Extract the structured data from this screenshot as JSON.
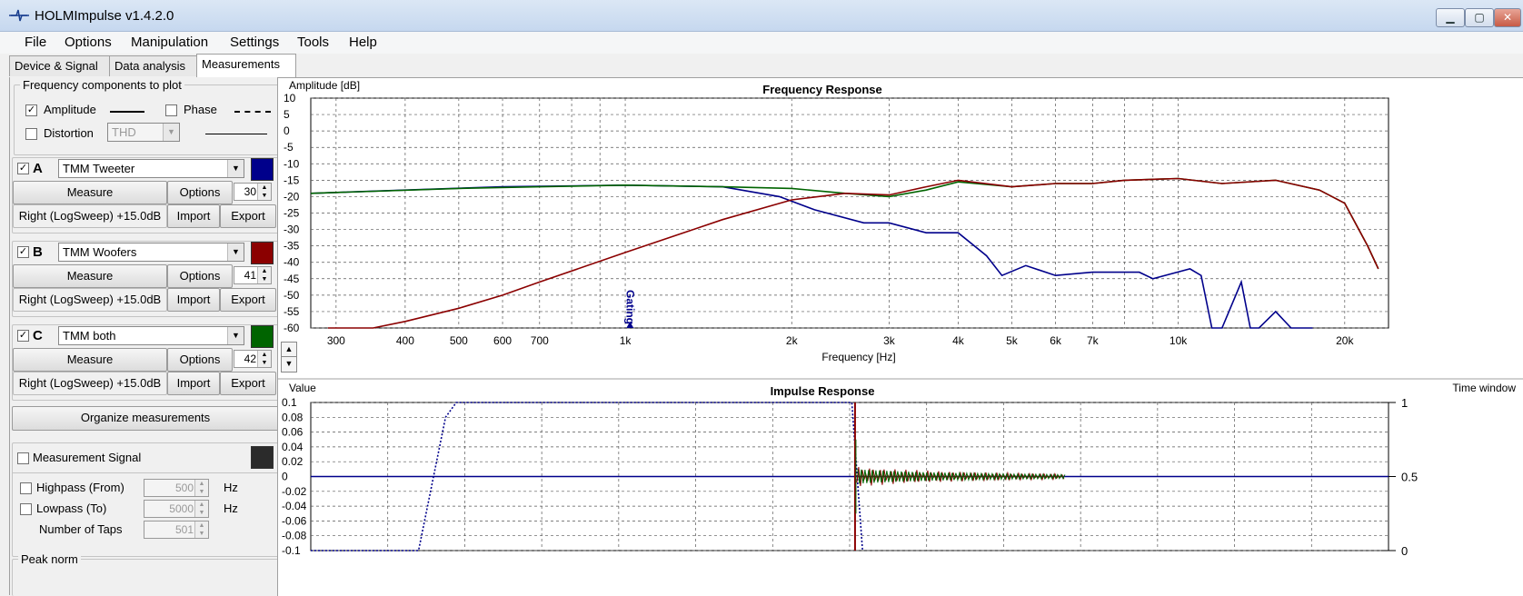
{
  "window": {
    "title": "HOLMImpulse  v1.4.2.0",
    "minimize": "▁",
    "maximize": "▢",
    "close": "✕"
  },
  "menu": [
    "File",
    "Options",
    "Manipulation",
    "Settings",
    "Tools",
    "Help"
  ],
  "tabs": [
    "Device & Signal",
    "Data analysis",
    "Measurements"
  ],
  "freq_components": {
    "title": "Frequency components to plot",
    "amplitude": {
      "label": "Amplitude",
      "checked": true
    },
    "phase": {
      "label": "Phase",
      "checked": false
    },
    "distortion": {
      "label": "Distortion",
      "checked": false,
      "select": "THD"
    }
  },
  "measurements": [
    {
      "letter": "A",
      "checked": true,
      "name": "TMM Tweeter",
      "color": "#00008b",
      "measure": "Measure",
      "options": "Options",
      "count": "30",
      "info": "Right (LogSweep) +15.0dB",
      "import": "Import",
      "export": "Export"
    },
    {
      "letter": "B",
      "checked": true,
      "name": "TMM Woofers",
      "color": "#8b0000",
      "measure": "Measure",
      "options": "Options",
      "count": "41",
      "info": "Right (LogSweep) +15.0dB",
      "import": "Import",
      "export": "Export"
    },
    {
      "letter": "C",
      "checked": true,
      "name": "TMM both",
      "color": "#006400",
      "measure": "Measure",
      "options": "Options",
      "count": "42",
      "info": "Right (LogSweep) +15.0dB",
      "import": "Import",
      "export": "Export"
    }
  ],
  "organize": "Organize measurements",
  "signal": {
    "label": "Measurement Signal",
    "highpass": {
      "label": "Highpass (From)",
      "value": "500",
      "unit": "Hz"
    },
    "lowpass": {
      "label": "Lowpass (To)",
      "value": "5000",
      "unit": "Hz"
    },
    "taps": {
      "label": "Number of Taps",
      "value": "501"
    },
    "next_group": "Peak norm"
  },
  "chart_data": [
    {
      "type": "line",
      "title": "Frequency Response",
      "xlabel": "Frequency [Hz]",
      "ylabel": "Amplitude [dB]",
      "xscale": "log",
      "xlim": [
        270,
        24000
      ],
      "ylim": [
        -60,
        10
      ],
      "yticks": [
        10,
        5,
        0,
        -5,
        -10,
        -15,
        -20,
        -25,
        -30,
        -35,
        -40,
        -45,
        -50,
        -55,
        -60
      ],
      "xticks": [
        {
          "v": 300,
          "label": "300"
        },
        {
          "v": 400,
          "label": "400"
        },
        {
          "v": 500,
          "label": "500"
        },
        {
          "v": 600,
          "label": "600"
        },
        {
          "v": 700,
          "label": "700"
        },
        {
          "v": 1000,
          "label": "1k"
        },
        {
          "v": 2000,
          "label": "2k"
        },
        {
          "v": 3000,
          "label": "3k"
        },
        {
          "v": 4000,
          "label": "4k"
        },
        {
          "v": 5000,
          "label": "5k"
        },
        {
          "v": 6000,
          "label": "6k"
        },
        {
          "v": 7000,
          "label": "7k"
        },
        {
          "v": 10000,
          "label": "10k"
        },
        {
          "v": 20000,
          "label": "20k"
        }
      ],
      "grid": true,
      "marker": {
        "label": "Gating",
        "x": 1020
      },
      "series": [
        {
          "color": "#00008b",
          "x": [
            270,
            400,
            600,
            1000,
            1500,
            1900,
            2200,
            2700,
            3000,
            3500,
            4000,
            4500,
            4800,
            5300,
            6000,
            7000,
            8500,
            9000,
            10500,
            11000,
            11500,
            12000,
            13000,
            13500,
            14000,
            15000,
            16000,
            17000,
            17500
          ],
          "y": [
            -19,
            -18,
            -17,
            -16.5,
            -17,
            -20,
            -24,
            -28,
            -28,
            -31,
            -31,
            -38,
            -44,
            -41,
            -44,
            -43,
            -43,
            -45,
            -42,
            -44,
            -60,
            -60,
            -46,
            -60,
            -60,
            -55,
            -60,
            -60,
            -60
          ]
        },
        {
          "color": "#006400",
          "x": [
            270,
            500,
            700,
            1000,
            1500,
            2000,
            2500,
            3000,
            3500,
            4000,
            5000,
            6000,
            7000,
            8000,
            10000,
            12000,
            15000,
            18000,
            20000,
            22000,
            23000
          ],
          "y": [
            -19,
            -17.5,
            -17,
            -16.5,
            -17,
            -17.5,
            -19,
            -20,
            -18,
            -15.5,
            -17,
            -16,
            -16,
            -15,
            -14.5,
            -16,
            -15,
            -18,
            -22,
            -35,
            -42
          ]
        },
        {
          "color": "#8b0000",
          "x": [
            290,
            350,
            400,
            500,
            600,
            700,
            1000,
            1500,
            2000,
            2500,
            3000,
            3500,
            4000,
            5000,
            6000,
            7000,
            8000,
            10000,
            12000,
            15000,
            18000,
            20000,
            22000,
            23000
          ],
          "y": [
            -60,
            -60,
            -58,
            -54,
            -50,
            -46,
            -37,
            -27,
            -21,
            -19,
            -19.5,
            -17,
            -15,
            -17,
            -16,
            -16,
            -15,
            -14.5,
            -16,
            -15,
            -18,
            -22,
            -35,
            -42
          ]
        }
      ]
    },
    {
      "type": "line",
      "title": "Impulse Response",
      "ylabel": "Value",
      "right_label": "Time window",
      "ylim": [
        -0.1,
        0.1
      ],
      "yticks": [
        "0.1",
        "0.08",
        "0.06",
        "0.04",
        "0.02",
        "0",
        "-0.02",
        "-0.04",
        "-0.06",
        "-0.08",
        "-0.1"
      ],
      "right_ticks": [
        "1",
        "0.5",
        "0"
      ],
      "grid": true,
      "window_series": {
        "style": "dotted",
        "color": "#00008b",
        "x": [
          0.0,
          0.1,
          0.125,
          0.135,
          0.5,
          0.502,
          0.512
        ],
        "y": [
          0,
          0,
          0.9,
          1,
          1,
          1,
          0
        ]
      },
      "impulse": {
        "x": 0.505,
        "peak": 0.1,
        "min": -0.1,
        "decay_end": 0.7
      }
    }
  ]
}
